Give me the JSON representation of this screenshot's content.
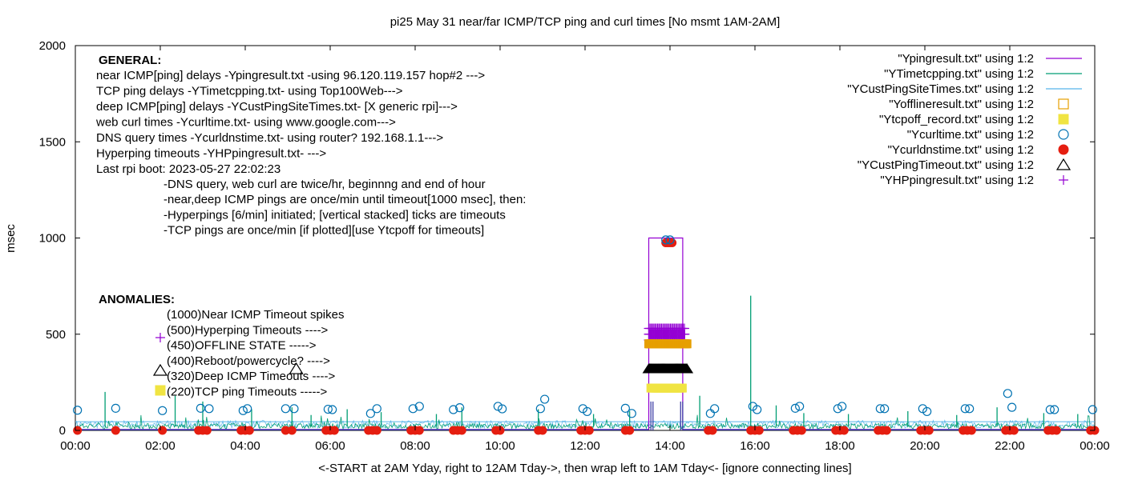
{
  "chart_data": {
    "type": "line",
    "title": "pi25 May 31  near/far ICMP/TCP ping and curl times [No msmt 1AM-2AM]",
    "xlabel": "<-START at 2AM Yday, right to 12AM Tday->, then wrap left to 1AM Tday<- [ignore connecting lines]",
    "ylabel": "msec",
    "xlim": [
      0,
      24
    ],
    "ylim": [
      0,
      2000
    ],
    "x_ticks": [
      {
        "value": 0,
        "label": "00:00"
      },
      {
        "value": 2,
        "label": "02:00"
      },
      {
        "value": 4,
        "label": "04:00"
      },
      {
        "value": 6,
        "label": "06:00"
      },
      {
        "value": 8,
        "label": "08:00"
      },
      {
        "value": 10,
        "label": "10:00"
      },
      {
        "value": 12,
        "label": "12:00"
      },
      {
        "value": 14,
        "label": "14:00"
      },
      {
        "value": 16,
        "label": "16:00"
      },
      {
        "value": 18,
        "label": "18:00"
      },
      {
        "value": 20,
        "label": "20:00"
      },
      {
        "value": 22,
        "label": "22:00"
      },
      {
        "value": 24,
        "label": "00:00"
      }
    ],
    "y_ticks": [
      {
        "value": 0,
        "label": "0"
      },
      {
        "value": 500,
        "label": "500"
      },
      {
        "value": 1000,
        "label": "1000"
      },
      {
        "value": 1500,
        "label": "1500"
      },
      {
        "value": 2000,
        "label": "2000"
      }
    ],
    "grid": false,
    "legend_position": "top-right",
    "colors": {
      "ping": "#9400d3",
      "tcp": "#009e73",
      "custping": "#56b4e9",
      "offline": "#e69f00",
      "tcpoff": "#f0e442",
      "curl": "#0072b2",
      "dns": "#e51e10",
      "custtimeout": "#000000",
      "hpping": "#9400d3"
    },
    "series": [
      {
        "key": "ping",
        "name": "\"Ypingresult.txt\" using 1:2",
        "style": "line",
        "note_points": [
          [
            0,
            5
          ],
          [
            13.5,
            5
          ],
          [
            13.5,
            1000
          ],
          [
            14.3,
            1000
          ],
          [
            14.3,
            5
          ],
          [
            24,
            5
          ]
        ]
      },
      {
        "key": "tcp",
        "name": "\"YTimetcpping.txt\" using 1:2",
        "style": "line",
        "spikes": [
          [
            0.7,
            200
          ],
          [
            2.35,
            180
          ],
          [
            3.0,
            150
          ],
          [
            4.15,
            110
          ],
          [
            5.1,
            120
          ],
          [
            5.55,
            80
          ],
          [
            6.4,
            110
          ],
          [
            7.2,
            95
          ],
          [
            8.5,
            85
          ],
          [
            9.1,
            120
          ],
          [
            10.9,
            110
          ],
          [
            12.2,
            85
          ],
          [
            13.05,
            100
          ],
          [
            14.7,
            180
          ],
          [
            15.9,
            700
          ],
          [
            16.5,
            130
          ],
          [
            17.15,
            90
          ],
          [
            18.2,
            85
          ],
          [
            19.6,
            100
          ],
          [
            20.75,
            80
          ],
          [
            21.7,
            120
          ],
          [
            22.8,
            90
          ],
          [
            23.6,
            85
          ]
        ]
      },
      {
        "key": "custping",
        "name": "\"YCustPingSiteTimes.txt\" using 1:2",
        "style": "line"
      },
      {
        "key": "offline",
        "name": "\"Yofflineresult.txt\" using 1:2",
        "style": "open-square",
        "bar": {
          "x0": 13.5,
          "x1": 14.4,
          "y": 450
        }
      },
      {
        "key": "tcpoff",
        "name": "\"Ytcpoff_record.txt\" using 1:2",
        "style": "filled-square",
        "bar": {
          "x0": 13.55,
          "x1": 14.3,
          "y": 220
        }
      },
      {
        "key": "curl",
        "name": "\"Ycurltime.txt\" using 1:2",
        "style": "open-circle",
        "points": [
          [
            0.05,
            105
          ],
          [
            0.95,
            115
          ],
          [
            2.05,
            103
          ],
          [
            2.95,
            115
          ],
          [
            3.15,
            113
          ],
          [
            3.95,
            103
          ],
          [
            4.05,
            113
          ],
          [
            4.95,
            113
          ],
          [
            5.15,
            113
          ],
          [
            5.95,
            110
          ],
          [
            6.05,
            108
          ],
          [
            6.95,
            88
          ],
          [
            7.1,
            113
          ],
          [
            7.95,
            113
          ],
          [
            8.1,
            125
          ],
          [
            8.9,
            108
          ],
          [
            9.05,
            118
          ],
          [
            9.95,
            125
          ],
          [
            10.05,
            112
          ],
          [
            10.95,
            113
          ],
          [
            11.05,
            162
          ],
          [
            11.95,
            113
          ],
          [
            12.05,
            98
          ],
          [
            12.95,
            115
          ],
          [
            13.1,
            88
          ],
          [
            13.9,
            990
          ],
          [
            14.0,
            990
          ],
          [
            14.95,
            88
          ],
          [
            15.05,
            113
          ],
          [
            15.95,
            125
          ],
          [
            16.05,
            108
          ],
          [
            16.95,
            115
          ],
          [
            17.05,
            125
          ],
          [
            17.95,
            113
          ],
          [
            18.05,
            125
          ],
          [
            18.95,
            113
          ],
          [
            19.05,
            113
          ],
          [
            19.95,
            113
          ],
          [
            20.05,
            98
          ],
          [
            20.95,
            113
          ],
          [
            21.05,
            113
          ],
          [
            21.95,
            192
          ],
          [
            22.05,
            120
          ],
          [
            22.95,
            108
          ],
          [
            23.05,
            108
          ],
          [
            23.95,
            108
          ]
        ]
      },
      {
        "key": "dns",
        "name": "\"Ycurldnstime.txt\" using 1:2",
        "style": "filled-circle",
        "points": [
          [
            0.05,
            0
          ],
          [
            0.95,
            0
          ],
          [
            2.05,
            0
          ],
          [
            2.9,
            0
          ],
          [
            3.0,
            0
          ],
          [
            3.1,
            0
          ],
          [
            3.9,
            0
          ],
          [
            4.0,
            0
          ],
          [
            4.1,
            0
          ],
          [
            4.95,
            0
          ],
          [
            5.1,
            0
          ],
          [
            5.9,
            0
          ],
          [
            6.0,
            0
          ],
          [
            6.1,
            0
          ],
          [
            6.9,
            0
          ],
          [
            7.0,
            0
          ],
          [
            7.1,
            0
          ],
          [
            7.9,
            0
          ],
          [
            8.0,
            0
          ],
          [
            8.1,
            0
          ],
          [
            8.9,
            0
          ],
          [
            9.0,
            0
          ],
          [
            9.1,
            0
          ],
          [
            9.9,
            0
          ],
          [
            10.0,
            0
          ],
          [
            10.9,
            0
          ],
          [
            11.0,
            0
          ],
          [
            11.9,
            0
          ],
          [
            12.0,
            0
          ],
          [
            12.1,
            0
          ],
          [
            12.95,
            0
          ],
          [
            13.05,
            0
          ],
          [
            13.9,
            975
          ],
          [
            13.95,
            975
          ],
          [
            14.0,
            975
          ],
          [
            14.05,
            975
          ],
          [
            14.9,
            0
          ],
          [
            15.0,
            0
          ],
          [
            15.9,
            0
          ],
          [
            16.0,
            0
          ],
          [
            16.1,
            0
          ],
          [
            16.9,
            0
          ],
          [
            17.0,
            0
          ],
          [
            17.1,
            0
          ],
          [
            17.9,
            0
          ],
          [
            18.0,
            0
          ],
          [
            18.1,
            0
          ],
          [
            18.9,
            0
          ],
          [
            19.0,
            0
          ],
          [
            19.1,
            0
          ],
          [
            19.9,
            0
          ],
          [
            20.0,
            0
          ],
          [
            20.1,
            0
          ],
          [
            20.9,
            0
          ],
          [
            21.0,
            0
          ],
          [
            21.1,
            0
          ],
          [
            21.9,
            0
          ],
          [
            22.0,
            0
          ],
          [
            22.1,
            0
          ],
          [
            22.9,
            0
          ],
          [
            23.0,
            0
          ],
          [
            23.1,
            0
          ],
          [
            23.9,
            0
          ],
          [
            24.0,
            0
          ]
        ]
      },
      {
        "key": "custtimeout",
        "name": "\"YCustPingTimeout.txt\" using 1:2",
        "style": "open-triangle",
        "bar": {
          "x0": 13.5,
          "x1": 14.4,
          "y": 320
        },
        "extra_points": [
          [
            5.2,
            320
          ]
        ]
      },
      {
        "key": "hpping",
        "name": "\"YHPpingresult.txt\" using 1:2",
        "style": "plus",
        "bar": {
          "x0": 13.5,
          "x1": 14.35,
          "y": 500
        }
      }
    ],
    "annotations": {
      "general_header": "GENERAL:",
      "general_lines": [
        "near ICMP[ping] delays -Ypingresult.txt -using 96.120.119.157 hop#2 --->",
        "TCP ping delays -YTimetcpping.txt- using Top100Web--->",
        "deep ICMP[ping] delays -YCustPingSiteTimes.txt- [X generic rpi]--->",
        "web curl times -Ycurltime.txt- using www.google.com--->",
        "DNS query times -Ycurldnstime.txt- using router? 192.168.1.1--->",
        "Hyperping timeouts -YHPpingresult.txt- --->",
        "Last rpi boot: 2023-05-27 22:02:23"
      ],
      "notes": [
        "-DNS query, web curl are twice/hr, beginnng and end of hour",
        "-near,deep ICMP pings are once/min until timeout[1000 msec], then:",
        "  -Hyperpings [6/min] initiated; [vertical stacked] ticks are timeouts",
        "-TCP pings are once/min [if plotted][use Ytcpoff for timeouts]"
      ],
      "anomalies_header": "ANOMALIES:",
      "anomalies": [
        "(1000)Near ICMP Timeout spikes",
        "(500)Hyperping Timeouts ---->",
        "(450)OFFLINE STATE ----->",
        "(400)Reboot/powercycle? ---->",
        "(320)Deep ICMP Timeouts ---->",
        "(220)TCP ping Timeouts ----->"
      ]
    }
  }
}
